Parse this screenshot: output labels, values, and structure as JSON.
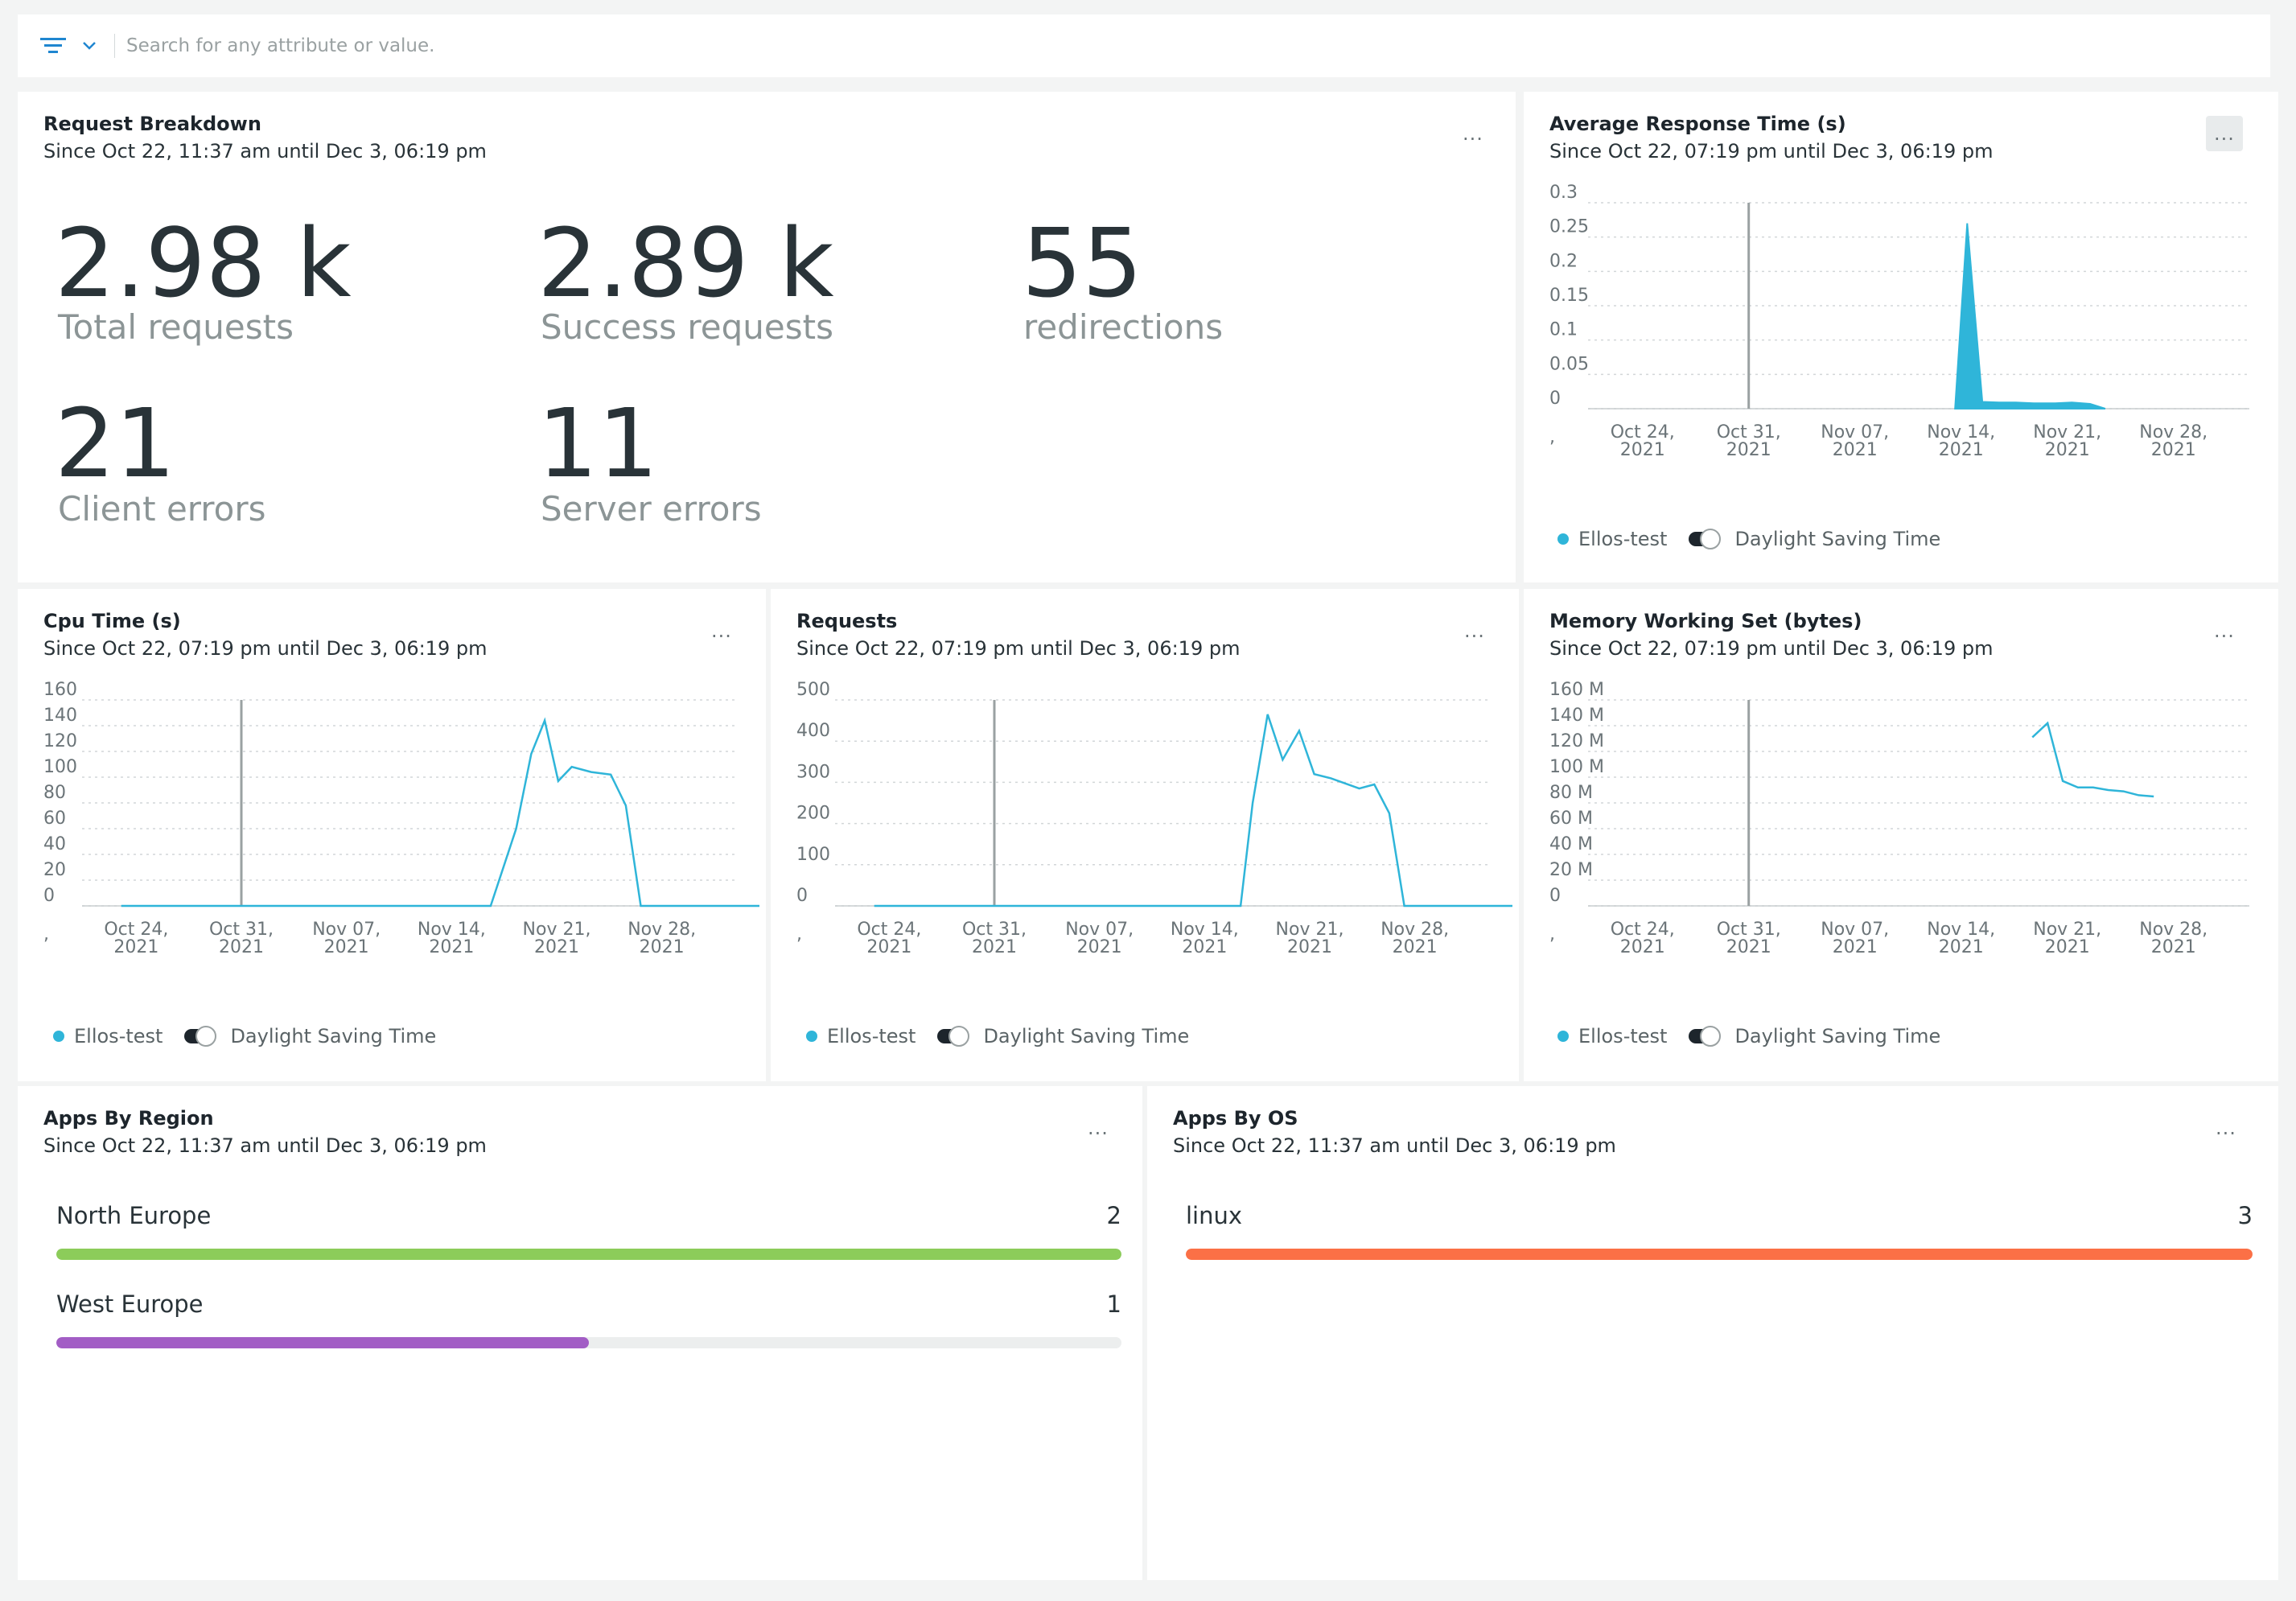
{
  "search": {
    "placeholder": "Search for any attribute or value."
  },
  "widgets": {
    "request_breakdown": {
      "title": "Request Breakdown",
      "subtitle": "Since Oct 22, 11:37 am until Dec 3, 06:19 pm",
      "metrics": [
        {
          "value": "2.98 k",
          "label": "Total requests"
        },
        {
          "value": "2.89 k",
          "label": "Success requests"
        },
        {
          "value": "55",
          "label": "redirections"
        },
        {
          "value": "21",
          "label": "Client errors"
        },
        {
          "value": "11",
          "label": "Server errors"
        }
      ]
    },
    "avg_response": {
      "title": "Average Response Time (s)",
      "subtitle": "Since Oct 22, 07:19 pm until Dec 3, 06:19 pm"
    },
    "cpu_time": {
      "title": "Cpu Time (s)",
      "subtitle": "Since Oct 22, 07:19 pm until Dec 3, 06:19 pm"
    },
    "requests": {
      "title": "Requests",
      "subtitle": "Since Oct 22, 07:19 pm until Dec 3, 06:19 pm"
    },
    "memory": {
      "title": "Memory Working Set (bytes)",
      "subtitle": "Since Oct 22, 07:19 pm until Dec 3, 06:19 pm"
    },
    "apps_by_region": {
      "title": "Apps By Region",
      "subtitle": "Since Oct 22, 11:37 am until Dec 3, 06:19 pm",
      "rows": [
        {
          "label": "North Europe",
          "value": "2",
          "fraction": 1.0,
          "color": "#8ccc5a"
        },
        {
          "label": "West Europe",
          "value": "1",
          "fraction": 0.5,
          "color": "#a25dc5"
        }
      ]
    },
    "apps_by_os": {
      "title": "Apps By OS",
      "subtitle": "Since Oct 22, 11:37 am until Dec 3, 06:19 pm",
      "rows": [
        {
          "label": "linux",
          "value": "3",
          "fraction": 1.0,
          "color": "#fb7046"
        }
      ]
    }
  },
  "legend": {
    "series": "Ellos-test",
    "toggle_label": "Daylight Saving Time",
    "series_color": "#2fb5d9"
  },
  "more_label": "...",
  "chart_data": [
    {
      "id": "avg_response",
      "type": "area",
      "title": "Average Response Time (s)",
      "yticks": [
        "0.3",
        "0.25",
        "0.2",
        "0.15",
        "0.1",
        "0.05",
        "0"
      ],
      "ylim": [
        0,
        0.3
      ],
      "xtick_labels": [
        "Oct 24, 2021",
        "Oct 31, 2021",
        "Nov 07, 2021",
        "Nov 14, 2021",
        "Nov 21, 2021",
        "Nov 28, 2021"
      ],
      "x_range_days": [
        0,
        42
      ],
      "marker_day": 9,
      "series": [
        {
          "name": "Ellos-test",
          "color": "#2fb5d9",
          "points": [
            [
              22.6,
              0
            ],
            [
              23.4,
              0.27
            ],
            [
              24.4,
              0.01
            ],
            [
              25.5,
              0.009
            ],
            [
              26.6,
              0.009
            ],
            [
              27.8,
              0.008
            ],
            [
              29.2,
              0.008
            ],
            [
              30.3,
              0.009
            ],
            [
              31.5,
              0.007
            ],
            [
              32.5,
              0
            ]
          ]
        }
      ]
    },
    {
      "id": "cpu_time",
      "type": "line",
      "title": "Cpu Time (s)",
      "yticks": [
        "160",
        "140",
        "120",
        "100",
        "80",
        "60",
        "40",
        "20",
        "0"
      ],
      "ylim": [
        0,
        160
      ],
      "xtick_labels": [
        "Oct 24, 2021",
        "Oct 31, 2021",
        "Nov 07, 2021",
        "Nov 14, 2021",
        "Nov 21, 2021",
        "Nov 28, 2021"
      ],
      "x_range_days": [
        0,
        42
      ],
      "marker_day": 9,
      "series": [
        {
          "name": "Ellos-test",
          "color": "#2fb5d9",
          "points": [
            [
              1,
              0
            ],
            [
              10,
              0
            ],
            [
              20,
              0
            ],
            [
              25.6,
              0
            ],
            [
              27.3,
              60
            ],
            [
              28.3,
              118
            ],
            [
              29.2,
              144
            ],
            [
              30.1,
              97
            ],
            [
              31,
              108
            ],
            [
              32.3,
              104
            ],
            [
              33.6,
              102
            ],
            [
              34.6,
              78
            ],
            [
              35.6,
              0
            ],
            [
              40,
              0
            ],
            [
              43.5,
              0
            ]
          ]
        }
      ]
    },
    {
      "id": "requests",
      "type": "line",
      "title": "Requests",
      "yticks": [
        "500",
        "400",
        "300",
        "200",
        "100",
        "0"
      ],
      "ylim": [
        0,
        500
      ],
      "xtick_labels": [
        "Oct 24, 2021",
        "Oct 31, 2021",
        "Nov 07, 2021",
        "Nov 14, 2021",
        "Nov 21, 2021",
        "Nov 28, 2021"
      ],
      "x_range_days": [
        0,
        42
      ],
      "marker_day": 9,
      "series": [
        {
          "name": "Ellos-test",
          "color": "#2fb5d9",
          "points": [
            [
              1,
              0
            ],
            [
              10,
              0
            ],
            [
              20,
              0
            ],
            [
              25.4,
              0
            ],
            [
              26.2,
              250
            ],
            [
              27.2,
              465
            ],
            [
              28.2,
              355
            ],
            [
              29.3,
              425
            ],
            [
              30.3,
              320
            ],
            [
              31.4,
              310
            ],
            [
              33.3,
              285
            ],
            [
              34.3,
              295
            ],
            [
              35.3,
              225
            ],
            [
              36.3,
              0
            ],
            [
              40,
              0
            ],
            [
              43.5,
              0
            ]
          ]
        }
      ]
    },
    {
      "id": "memory",
      "type": "line",
      "title": "Memory Working Set (bytes)",
      "yticks": [
        "160 M",
        "140 M",
        "120 M",
        "100 M",
        "80 M",
        "60 M",
        "40 M",
        "20 M",
        "0"
      ],
      "ylim": [
        0,
        160
      ],
      "xtick_labels": [
        "Oct 24, 2021",
        "Oct 31, 2021",
        "Nov 07, 2021",
        "Nov 14, 2021",
        "Nov 21, 2021",
        "Nov 28, 2021"
      ],
      "x_range_days": [
        0,
        42
      ],
      "marker_day": 9,
      "series": [
        {
          "name": "Ellos-test",
          "color": "#2fb5d9",
          "points": [
            [
              27.7,
              131
            ],
            [
              28.7,
              142
            ],
            [
              29.7,
              97
            ],
            [
              30.7,
              92
            ],
            [
              31.7,
              92
            ],
            [
              32.7,
              90
            ],
            [
              33.7,
              89
            ],
            [
              34.7,
              86
            ],
            [
              35.7,
              85
            ]
          ]
        }
      ]
    }
  ]
}
